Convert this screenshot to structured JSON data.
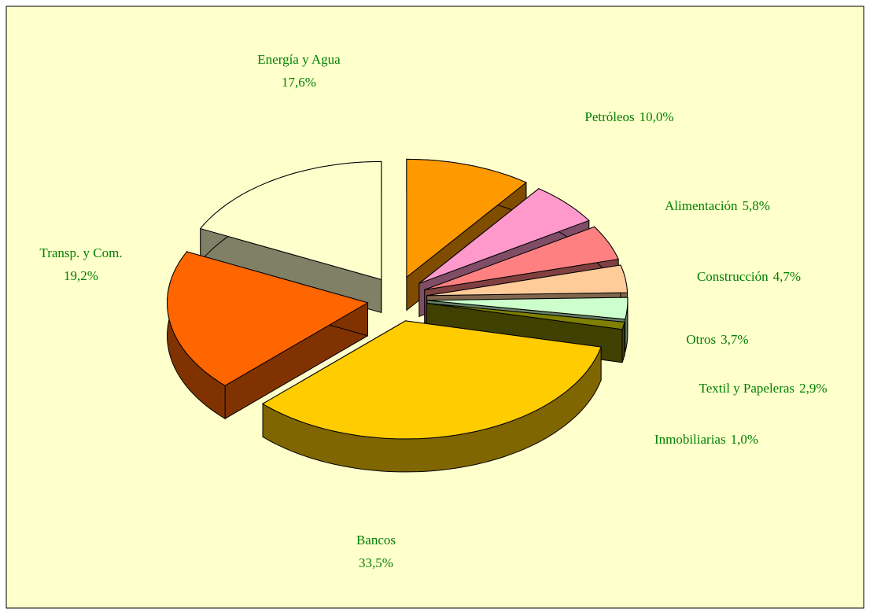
{
  "chart_data": {
    "type": "pie3d",
    "categories": [
      "Petróleos",
      "Alimentación",
      "Construcción",
      "Otros",
      "Textil y Papeleras",
      "Inmobiliarias",
      "Bancos",
      "Transp. y Com.",
      "Energía y Agua"
    ],
    "values": [
      10.0,
      5.8,
      4.7,
      3.7,
      2.9,
      1.0,
      33.5,
      19.2,
      17.6
    ],
    "value_labels": [
      "10,0%",
      "5,8%",
      "4,7%",
      "3,7%",
      "2,9%",
      "1,0%",
      "33,5%",
      "19,2%",
      "17,6%"
    ],
    "colors": [
      "#ff9900",
      "#ff99cc",
      "#ff8080",
      "#ffcc99",
      "#ccffcc",
      "#808000",
      "#ffcc00",
      "#ff6600",
      "#ffffcc"
    ]
  }
}
